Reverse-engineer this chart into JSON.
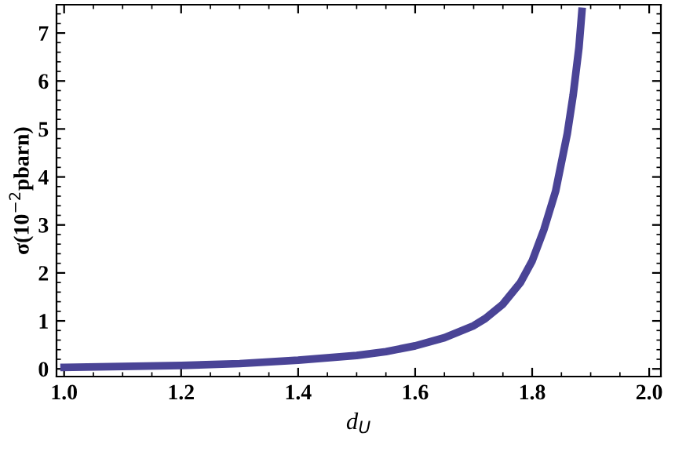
{
  "chart_data": {
    "type": "line",
    "xlabel": "d$_{U}$",
    "ylabel": "σ(10$^{−2}$pbarn)",
    "x": [
      1.0,
      1.1,
      1.2,
      1.3,
      1.4,
      1.5,
      1.55,
      1.6,
      1.65,
      1.7,
      1.72,
      1.75,
      1.78,
      1.8,
      1.82,
      1.84,
      1.86,
      1.87,
      1.88,
      1.885
    ],
    "series": [
      {
        "color": "#4a4496",
        "values": [
          0.03,
          0.05,
          0.07,
          0.11,
          0.18,
          0.28,
          0.36,
          0.48,
          0.65,
          0.9,
          1.05,
          1.35,
          1.8,
          2.25,
          2.9,
          3.7,
          4.9,
          5.7,
          6.7,
          7.45
        ]
      }
    ],
    "xlim": [
      0.987,
      2.02
    ],
    "ylim": [
      -0.16,
      7.59
    ],
    "xticks": [
      {
        "value": 1.0,
        "label": "1.0"
      },
      {
        "value": 1.2,
        "label": "1.2"
      },
      {
        "value": 1.4,
        "label": "1.4"
      },
      {
        "value": 1.6,
        "label": "1.6"
      },
      {
        "value": 1.8,
        "label": "1.8"
      },
      {
        "value": 2.0,
        "label": "2.0"
      }
    ],
    "yticks": [
      0,
      1,
      2,
      3,
      4,
      5,
      6,
      7
    ],
    "grid": false,
    "legend": false,
    "marker": "none",
    "line_style": "solid"
  }
}
